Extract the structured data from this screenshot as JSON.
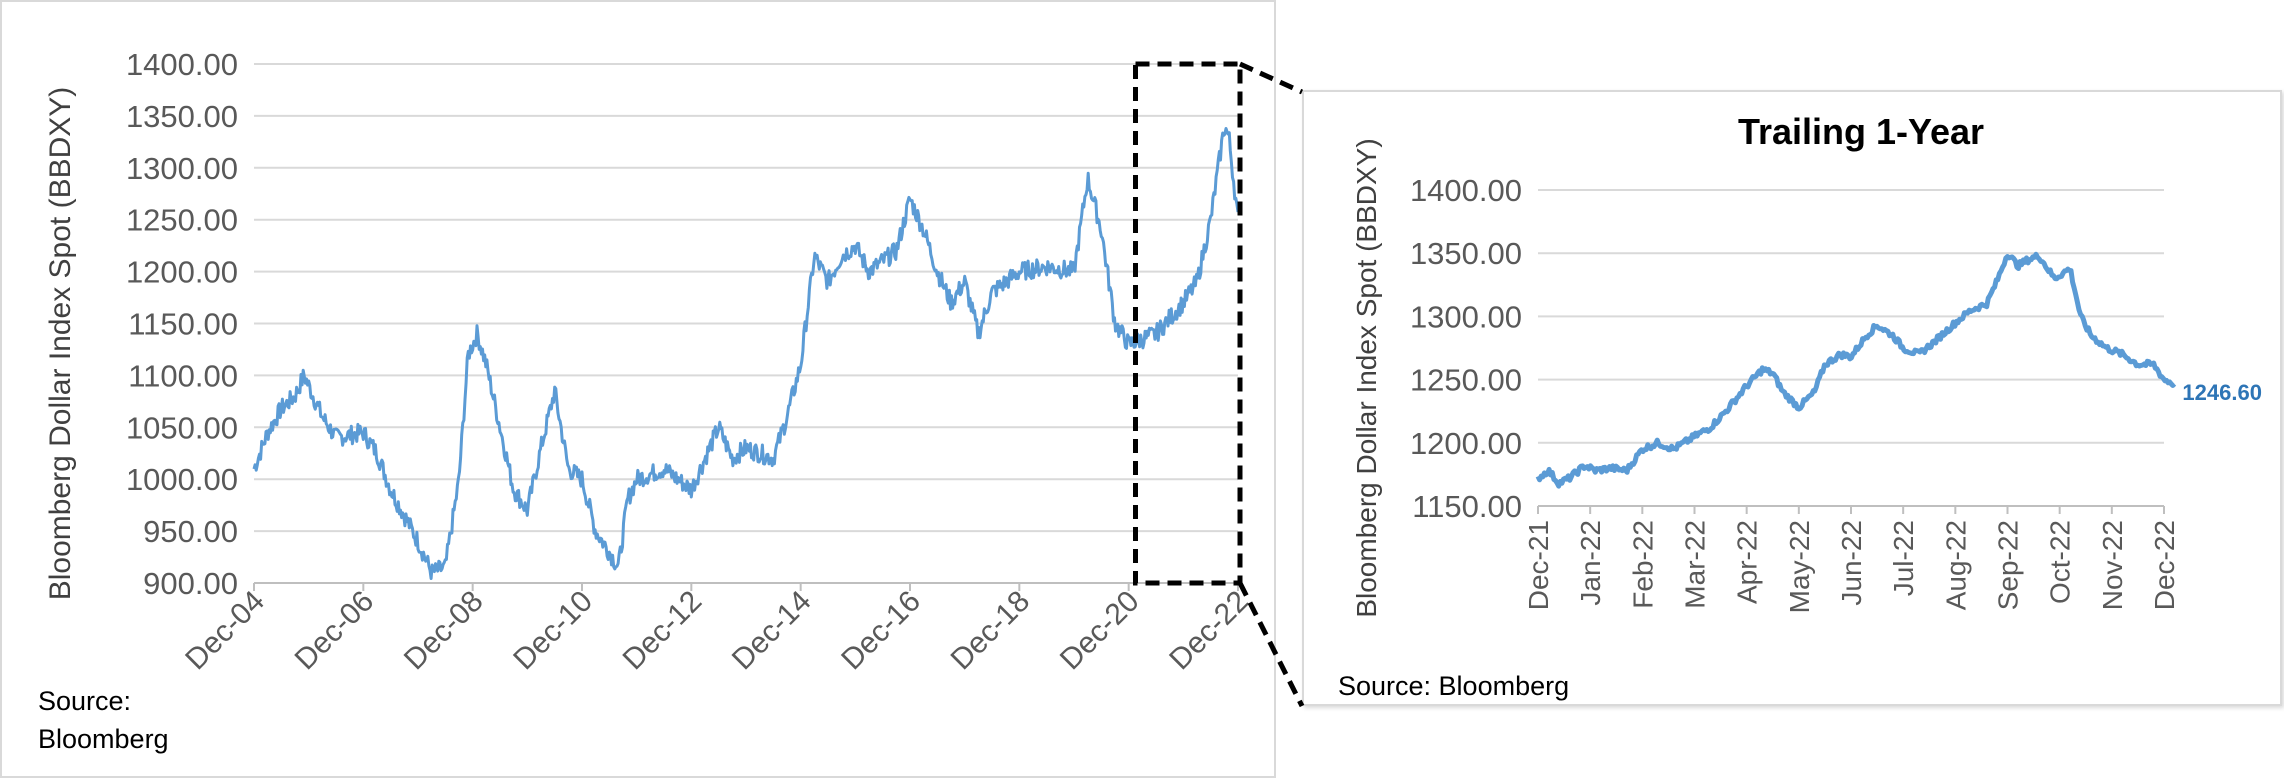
{
  "left_chart": {
    "source": "Source: Bloomberg",
    "chart_data": {
      "type": "line",
      "title": "",
      "ylabel": "Bloomberg Dollar Index Spot (BBDXY)",
      "xlabel": "",
      "ylim": [
        900,
        1400
      ],
      "yticks": [
        "1400.00",
        "1350.00",
        "1300.00",
        "1250.00",
        "1200.00",
        "1150.00",
        "1100.00",
        "1050.00",
        "1000.00",
        "950.00",
        "900.00"
      ],
      "xticks": [
        "Dec-04",
        "Dec-06",
        "Dec-08",
        "Dec-10",
        "Dec-12",
        "Dec-14",
        "Dec-16",
        "Dec-18",
        "Dec-20",
        "Dec-22"
      ],
      "grid": true,
      "series": [
        {
          "color": "#5b9bd5",
          "points": [
            [
              "Dec-04",
              1010
            ],
            [
              "2005-03",
              1045
            ],
            [
              "2005-06",
              1068
            ],
            [
              "2005-09",
              1080
            ],
            [
              "2005-11",
              1100
            ],
            [
              "Dec-05",
              1090
            ],
            [
              "2006-03",
              1060
            ],
            [
              "2006-06",
              1040
            ],
            [
              "Dec-06",
              1045
            ],
            [
              "2007-03",
              1025
            ],
            [
              "2007-06",
              990
            ],
            [
              "2007-09",
              965
            ],
            [
              "Dec-07",
              940
            ],
            [
              "2008-03",
              910
            ],
            [
              "2008-06",
              915
            ],
            [
              "2008-09",
              1000
            ],
            [
              "Nov-08",
              1120
            ],
            [
              "2009-01",
              1140
            ],
            [
              "2009-03",
              1110
            ],
            [
              "2009-06",
              1050
            ],
            [
              "2009-09",
              990
            ],
            [
              "Dec-09",
              970
            ],
            [
              "2010-03",
              1030
            ],
            [
              "2010-06",
              1085
            ],
            [
              "2010-09",
              1010
            ],
            [
              "Dec-10",
              1000
            ],
            [
              "2011-03",
              950
            ],
            [
              "2011-06",
              930
            ],
            [
              "2011-08",
              915
            ],
            [
              "2011-10",
              980
            ],
            [
              "Dec-11",
              1000
            ],
            [
              "2012-06",
              1010
            ],
            [
              "Dec-12",
              990
            ],
            [
              "2013-03",
              1020
            ],
            [
              "2013-06",
              1050
            ],
            [
              "2013-09",
              1020
            ],
            [
              "Dec-13",
              1030
            ],
            [
              "2014-06",
              1020
            ],
            [
              "2014-09",
              1060
            ],
            [
              "Dec-14",
              1110
            ],
            [
              "2015-03",
              1215
            ],
            [
              "2015-06",
              1190
            ],
            [
              "2015-09",
              1215
            ],
            [
              "Dec-15",
              1225
            ],
            [
              "2016-03",
              1200
            ],
            [
              "2016-06",
              1210
            ],
            [
              "2016-09",
              1220
            ],
            [
              "Dec-16",
              1270
            ],
            [
              "2017-03",
              1240
            ],
            [
              "2017-06",
              1200
            ],
            [
              "2017-09",
              1170
            ],
            [
              "Dec-17",
              1190
            ],
            [
              "2018-03",
              1140
            ],
            [
              "2018-06",
              1180
            ],
            [
              "2018-09",
              1190
            ],
            [
              "Dec-18",
              1200
            ],
            [
              "2019-06",
              1205
            ],
            [
              "Dec-19",
              1200
            ],
            [
              "2020-03",
              1290
            ],
            [
              "2020-06",
              1240
            ],
            [
              "2020-09",
              1150
            ],
            [
              "Dec-20",
              1130
            ],
            [
              "2021-06",
              1140
            ],
            [
              "Dec-21",
              1170
            ],
            [
              "2022-03",
              1190
            ],
            [
              "2022-06",
              1250
            ],
            [
              "2022-09",
              1340
            ],
            [
              "2022-10",
              1330
            ],
            [
              "Dec-22",
              1250
            ]
          ]
        }
      ]
    }
  },
  "right_chart": {
    "source": "Source: Bloomberg",
    "chart_data": {
      "type": "line",
      "title": "Trailing 1-Year",
      "ylabel": "Bloomberg Dollar Index Spot (BBDXY)",
      "xlabel": "",
      "ylim": [
        1150,
        1400
      ],
      "yticks": [
        "1400.00",
        "1350.00",
        "1300.00",
        "1250.00",
        "1200.00",
        "1150.00"
      ],
      "xticks": [
        "Dec-21",
        "Jan-22",
        "Feb-22",
        "Mar-22",
        "Apr-22",
        "May-22",
        "Jun-22",
        "Jul-22",
        "Aug-22",
        "Sep-22",
        "Oct-22",
        "Nov-22",
        "Dec-22"
      ],
      "grid": true,
      "end_label": "1246.60",
      "series": [
        {
          "color": "#5b9bd5",
          "points": [
            [
              0,
              1172
            ],
            [
              0.2,
              1178
            ],
            [
              0.4,
              1168
            ],
            [
              0.6,
              1172
            ],
            [
              0.9,
              1182
            ],
            [
              1.1,
              1178
            ],
            [
              1.4,
              1180
            ],
            [
              1.7,
              1178
            ],
            [
              2.0,
              1195
            ],
            [
              2.3,
              1200
            ],
            [
              2.6,
              1195
            ],
            [
              3.0,
              1205
            ],
            [
              3.3,
              1212
            ],
            [
              3.6,
              1225
            ],
            [
              4.0,
              1245
            ],
            [
              4.3,
              1258
            ],
            [
              4.5,
              1255
            ],
            [
              4.7,
              1240
            ],
            [
              5.0,
              1228
            ],
            [
              5.3,
              1240
            ],
            [
              5.5,
              1262
            ],
            [
              5.8,
              1270
            ],
            [
              6.0,
              1268
            ],
            [
              6.3,
              1285
            ],
            [
              6.5,
              1293
            ],
            [
              6.8,
              1285
            ],
            [
              7.0,
              1275
            ],
            [
              7.3,
              1270
            ],
            [
              7.6,
              1280
            ],
            [
              8.0,
              1295
            ],
            [
              8.3,
              1305
            ],
            [
              8.6,
              1310
            ],
            [
              8.8,
              1328
            ],
            [
              9.0,
              1350
            ],
            [
              9.2,
              1340
            ],
            [
              9.4,
              1345
            ],
            [
              9.6,
              1348
            ],
            [
              9.9,
              1330
            ],
            [
              10.2,
              1338
            ],
            [
              10.4,
              1300
            ],
            [
              10.6,
              1285
            ],
            [
              10.9,
              1275
            ],
            [
              11.2,
              1270
            ],
            [
              11.5,
              1262
            ],
            [
              11.8,
              1262
            ],
            [
              12.0,
              1250
            ],
            [
              12.2,
              1246.6
            ]
          ]
        }
      ]
    }
  },
  "zoom_box": {
    "color": "#000000"
  }
}
